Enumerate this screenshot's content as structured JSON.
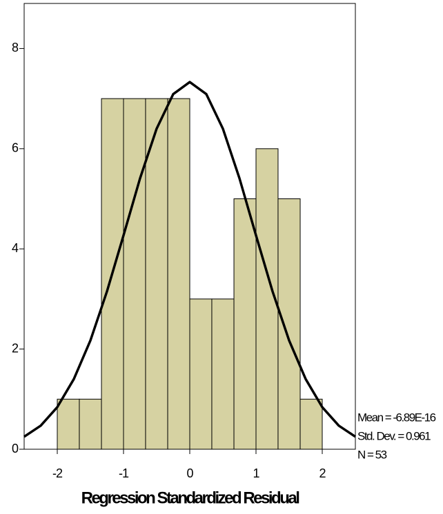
{
  "chart_data": {
    "type": "histogram",
    "xlabel": "Regression Standardized Residual",
    "bins": [
      -2,
      -1.667,
      -1.333,
      -1,
      -0.667,
      -0.333,
      0,
      0.333,
      0.667,
      1,
      1.333,
      1.667,
      2
    ],
    "counts": [
      1,
      1,
      7,
      7,
      7,
      7,
      3,
      3,
      5,
      6,
      5,
      1
    ],
    "color": "#d6d2a2",
    "curve": {
      "x": [
        -2.5,
        -2.25,
        -2,
        -1.75,
        -1.5,
        -1.25,
        -1,
        -0.75,
        -0.5,
        -0.25,
        0,
        0.25,
        0.5,
        0.75,
        1,
        1.25,
        1.5,
        1.75,
        2,
        2.25,
        2.5
      ],
      "y": [
        0.25,
        0.47,
        0.84,
        1.4,
        2.17,
        3.15,
        4.27,
        5.41,
        6.4,
        7.09,
        7.33,
        7.09,
        6.4,
        5.41,
        4.27,
        3.15,
        2.17,
        1.4,
        0.84,
        0.47,
        0.25
      ],
      "color": "#000000"
    },
    "stats": [
      "Mean = -6.89E-16",
      "Std. Dev. = 0.961",
      "N = 53"
    ],
    "xlim": [
      -2.5,
      2.5
    ],
    "xticks": [
      -2,
      -1,
      0,
      1,
      2
    ],
    "ylim": [
      0,
      8.9
    ],
    "yticks": [
      0,
      2,
      4,
      6,
      8
    ]
  }
}
